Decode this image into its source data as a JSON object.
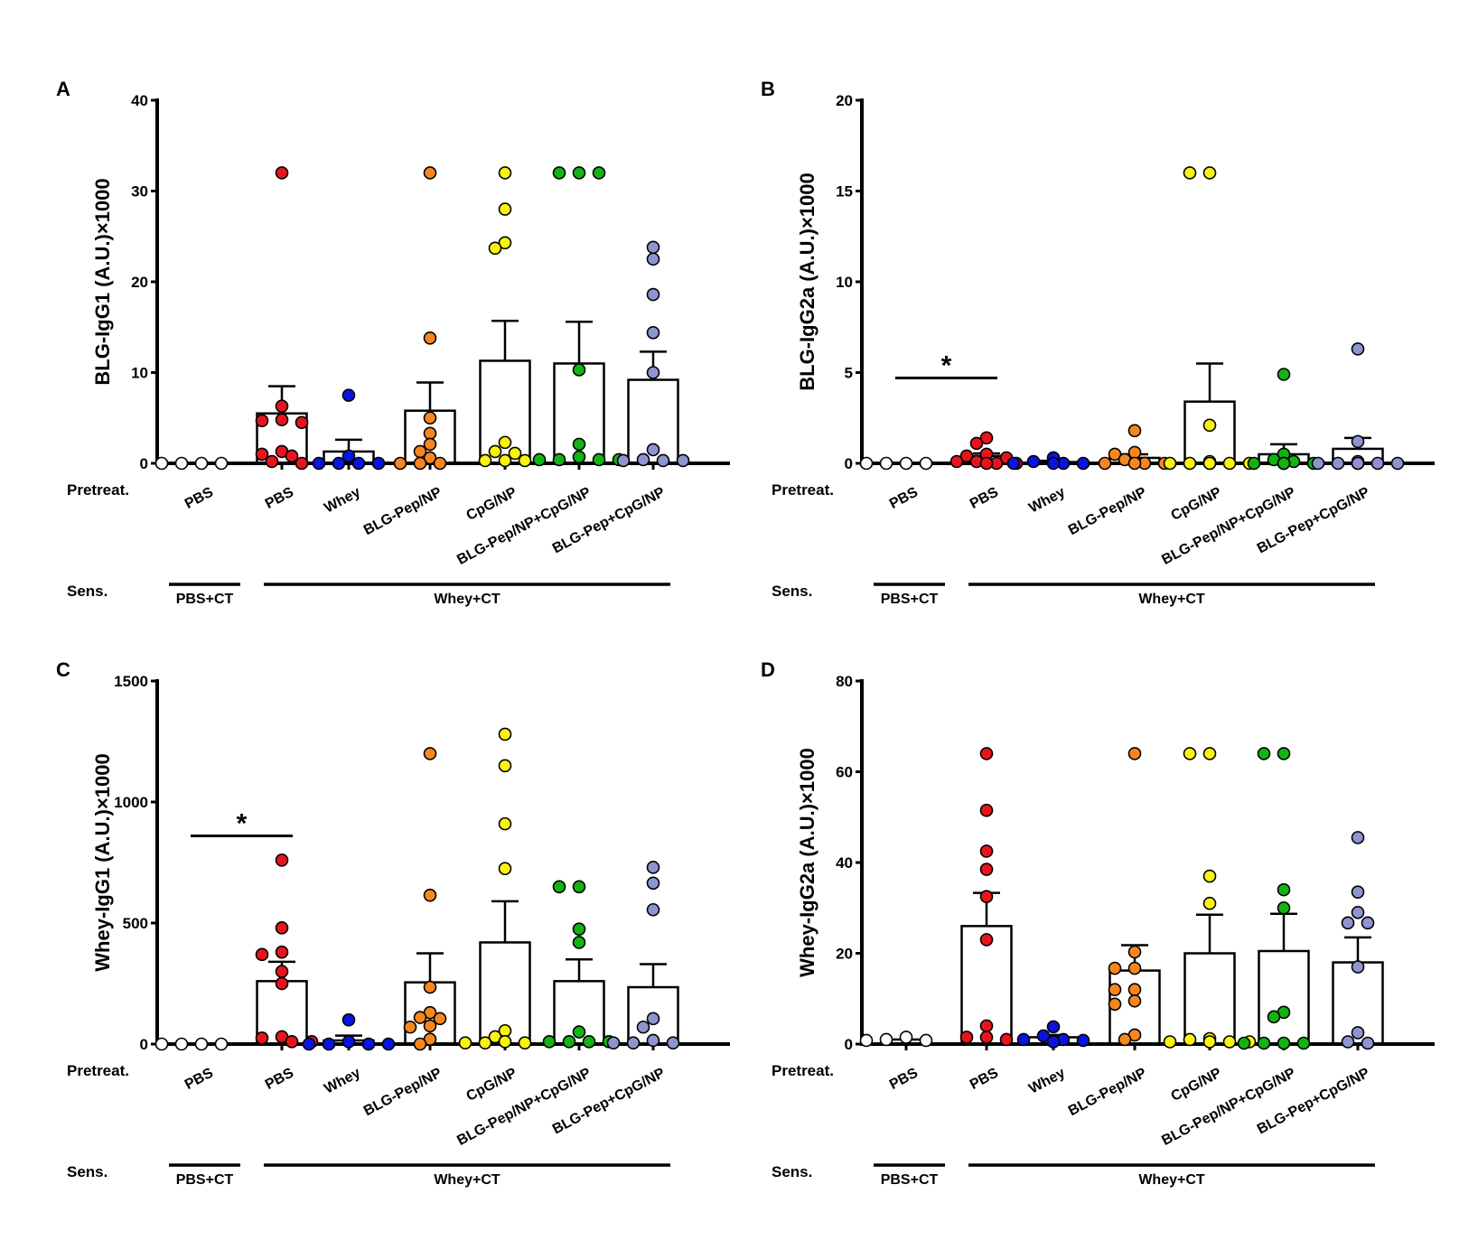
{
  "groups": [
    "PBS",
    "PBS",
    "Whey",
    "BLG-Pep/NP",
    "CpG/NP",
    "BLG-Pep/NP+CpG/NP",
    "BLG-Pep+CpG/NP"
  ],
  "colors": [
    "#ffffff",
    "#e8141c",
    "#0a14e0",
    "#f7861e",
    "#f9f40c",
    "#12b312",
    "#8e94d0"
  ],
  "row_labels": {
    "pretreat": "Pretreat.",
    "sens": "Sens."
  },
  "sens_groups": [
    {
      "label": "PBS+CT",
      "from": 0,
      "to": 0
    },
    {
      "label": "Whey+CT",
      "from": 1,
      "to": 6
    }
  ],
  "chart_data": [
    {
      "type": "bar",
      "panel": "A",
      "ylabel": "BLG-IgG1 (A.U.)×1000",
      "ylim": [
        0,
        40
      ],
      "yticks": [
        0,
        10,
        20,
        30,
        40
      ],
      "means": [
        0,
        5.5,
        1.3,
        5.8,
        11.3,
        11.0,
        9.2
      ],
      "sem": [
        0,
        3.0,
        1.3,
        3.1,
        4.4,
        4.6,
        3.1
      ],
      "points": [
        [
          0,
          0,
          0,
          0
        ],
        [
          32,
          6.3,
          4.5,
          4.7,
          4.8,
          1.3,
          1.0,
          0.8,
          0,
          0.2
        ],
        [
          7.5,
          0.8,
          0,
          0,
          0,
          0
        ],
        [
          32,
          13.8,
          5,
          3.3,
          2.1,
          1.3,
          0.6,
          0,
          0,
          0
        ],
        [
          32,
          28,
          24.3,
          23.7,
          2.3,
          1.3,
          1.1,
          0.3,
          0.3,
          0.3
        ],
        [
          32,
          32,
          32,
          10.3,
          2.1,
          0.7,
          0.4,
          0.4,
          0.4,
          0.4
        ],
        [
          23.8,
          22.5,
          18.6,
          14.4,
          10,
          1.5,
          0.4,
          0.3,
          0.3,
          0.3
        ]
      ],
      "significance": []
    },
    {
      "type": "bar",
      "panel": "B",
      "ylabel": "BLG-IgG2a (A.U.)×1000",
      "ylim": [
        0,
        20
      ],
      "yticks": [
        0,
        5,
        10,
        15,
        20
      ],
      "means": [
        0,
        0.4,
        0.07,
        0.3,
        3.4,
        0.5,
        0.8
      ],
      "sem": [
        0,
        0.15,
        0.07,
        0.2,
        2.1,
        0.55,
        0.6
      ],
      "points": [
        [
          0,
          0,
          0,
          0
        ],
        [
          1.4,
          1.1,
          0.5,
          0.4,
          0.3,
          0.1,
          0,
          0,
          0,
          0.1
        ],
        [
          0.3,
          0.1,
          0,
          0,
          0,
          0
        ],
        [
          1.8,
          0.6,
          0.5,
          0.2,
          0,
          0,
          0,
          0
        ],
        [
          16,
          16,
          2.1,
          0.1,
          0,
          0,
          0,
          0,
          0,
          0
        ],
        [
          4.9,
          0.5,
          0.2,
          0.1,
          0,
          0,
          0,
          0,
          0
        ],
        [
          6.3,
          1.2,
          0.1,
          0,
          0,
          0,
          0,
          0,
          0
        ]
      ],
      "significance": [
        {
          "from": 0,
          "to": 1,
          "y": 4.7,
          "label": "*"
        }
      ]
    },
    {
      "type": "bar",
      "panel": "C",
      "ylabel": "Whey-IgG1 (A.U.)×1000",
      "ylim": [
        0,
        1500
      ],
      "yticks": [
        0,
        500,
        1000,
        1500
      ],
      "means": [
        0,
        260,
        15,
        255,
        420,
        260,
        235
      ],
      "sem": [
        0,
        80,
        20,
        120,
        170,
        90,
        95
      ],
      "points": [
        [
          0,
          0,
          0,
          0
        ],
        [
          760,
          480,
          380,
          370,
          300,
          250,
          30,
          10,
          10,
          25
        ],
        [
          100,
          10,
          0,
          0,
          0,
          0
        ],
        [
          1200,
          615,
          235,
          130,
          110,
          105,
          70,
          75,
          20,
          0
        ],
        [
          1280,
          1150,
          910,
          725,
          55,
          30,
          10,
          5,
          5,
          5
        ],
        [
          650,
          650,
          475,
          420,
          50,
          10,
          10,
          10,
          10
        ],
        [
          730,
          665,
          555,
          105,
          70,
          15,
          5,
          5,
          5
        ]
      ],
      "significance": [
        {
          "from": 0,
          "to": 1,
          "y": 860,
          "label": "*"
        }
      ]
    },
    {
      "type": "bar",
      "panel": "D",
      "ylabel": "Whey-IgG2a (A.U.)×1000",
      "ylim": [
        0,
        80
      ],
      "yticks": [
        0,
        20,
        40,
        60,
        80
      ],
      "means": [
        1,
        26,
        1.5,
        16.2,
        20,
        20.5,
        18
      ],
      "sem": [
        0,
        7.3,
        0.5,
        5.6,
        8.5,
        8.2,
        5.5
      ],
      "points": [
        [
          0.8,
          1.5,
          0.8,
          1
        ],
        [
          64,
          51.5,
          42.5,
          38.5,
          32.5,
          23,
          4,
          1.5,
          1.5,
          1
        ],
        [
          3.8,
          1.8,
          1,
          1,
          0.8,
          0.5
        ],
        [
          64,
          20.3,
          16.7,
          16.7,
          12,
          12,
          9.5,
          8.8,
          2,
          1
        ],
        [
          64,
          64,
          37,
          31,
          1.2,
          1,
          0.5,
          0.5,
          0.5,
          0.5
        ],
        [
          64,
          64,
          34,
          30,
          7,
          6,
          0.2,
          0.2,
          0.2,
          0.2
        ],
        [
          45.5,
          33.5,
          29,
          26.7,
          26.7,
          17,
          2.5,
          0.5,
          0.2
        ]
      ],
      "significance": []
    }
  ]
}
